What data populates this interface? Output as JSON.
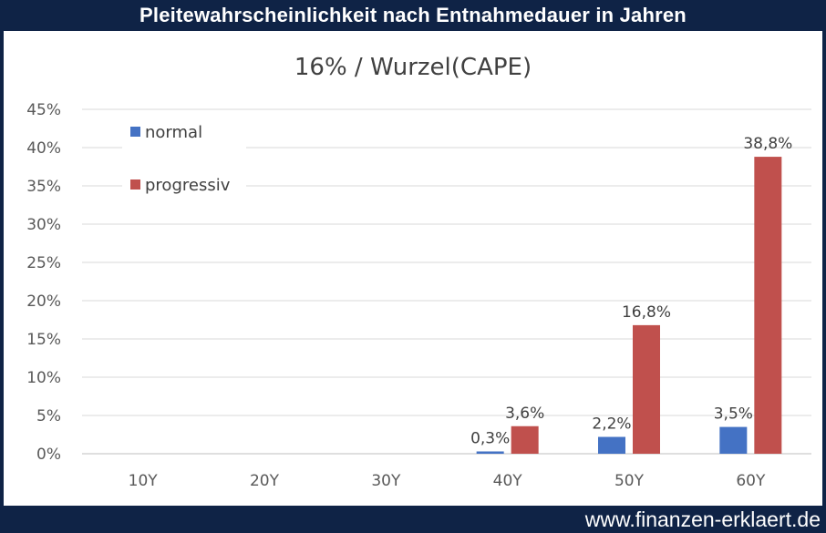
{
  "header": {
    "title": "Pleitewahrscheinlichkeit nach Entnahmedauer in Jahren"
  },
  "footer": {
    "site": "www.finanzen-erklaert.de"
  },
  "colors": {
    "normal": "#4472c4",
    "progressiv": "#c0504d",
    "banner": "#0f2346",
    "grid": "#d9d9d9"
  },
  "chart_data": {
    "type": "bar",
    "title": "16% / Wurzel(CAPE)",
    "xlabel": "",
    "ylabel": "",
    "ylim": [
      0,
      45
    ],
    "yticks": [
      0,
      5,
      10,
      15,
      20,
      25,
      30,
      35,
      40,
      45
    ],
    "ytick_labels": [
      "0%",
      "5%",
      "10%",
      "15%",
      "20%",
      "25%",
      "30%",
      "35%",
      "40%",
      "45%"
    ],
    "grid": true,
    "legend_position": "top-left",
    "categories": [
      "10Y",
      "20Y",
      "30Y",
      "40Y",
      "50Y",
      "60Y"
    ],
    "series": [
      {
        "name": "normal",
        "values": [
          0,
          0,
          0,
          0.3,
          2.2,
          3.5
        ],
        "labels": [
          "",
          "",
          "",
          "0,3%",
          "2,2%",
          "3,5%"
        ]
      },
      {
        "name": "progressiv",
        "values": [
          0,
          0,
          0,
          3.6,
          16.8,
          38.8
        ],
        "labels": [
          "",
          "",
          "",
          "3,6%",
          "16,8%",
          "38,8%"
        ]
      }
    ]
  }
}
